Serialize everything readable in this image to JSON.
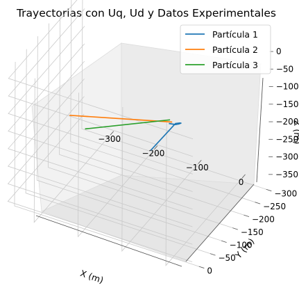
{
  "chart_data": {
    "type": "line",
    "projection": "3d",
    "title": "Trayectorias con Uq, Ud y Datos Experimentales",
    "xlabel": "X (m)",
    "ylabel": "Y (m)",
    "zlabel": "Z (m)",
    "xticks": [
      "−300",
      "−200",
      "−100",
      "0"
    ],
    "yticks": [
      "0",
      "−50",
      "−100",
      "−150",
      "−200",
      "−250",
      "−300"
    ],
    "zticks": [
      "0",
      "−50",
      "−100",
      "−150",
      "−200",
      "−250",
      "−300",
      "−350"
    ],
    "xlim": [
      -360,
      60
    ],
    "ylim": [
      -310,
      30
    ],
    "zlim": [
      -385,
      25
    ],
    "grid": true,
    "legend_position": "top-right",
    "series": [
      {
        "name": "Partícula 1",
        "color": "#1f77b4",
        "x": [
          -175,
          0,
          15,
          20,
          20,
          15,
          0
        ],
        "y": [
          -245,
          -10,
          0,
          5,
          15,
          20,
          20
        ],
        "z": [
          -330,
          -10,
          5,
          10,
          15,
          15,
          12
        ]
      },
      {
        "name": "Partícula 2",
        "color": "#ff7f0e",
        "x": [
          -330,
          0
        ],
        "y": [
          -185,
          5
        ],
        "z": [
          -250,
          5
        ]
      },
      {
        "name": "Partícula 3",
        "color": "#2ca02c",
        "x": [
          -330,
          -10
        ],
        "y": [
          -255,
          -5
        ],
        "z": [
          -340,
          0
        ]
      }
    ]
  }
}
